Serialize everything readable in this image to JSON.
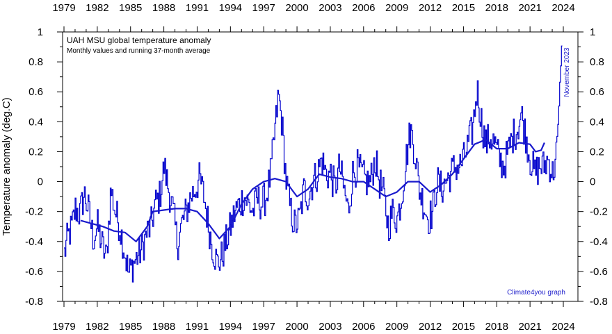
{
  "chart_data": {
    "type": "line",
    "title": "UAH MSU global temperature anomaly",
    "subtitle": "Monthly values and running 37-month average",
    "ylabel": "Temperature anomaly (deg.C)",
    "xlabel": "",
    "credit": "Climate4you graph",
    "end_label": "November 2023",
    "xlim": [
      1979.0,
      2024.0
    ],
    "ylim": [
      -0.8,
      1.0
    ],
    "x_ticks": [
      1979,
      1982,
      1985,
      1988,
      1991,
      1994,
      1997,
      2000,
      2003,
      2006,
      2009,
      2012,
      2015,
      2018,
      2021,
      2024
    ],
    "y_ticks": [
      -0.8,
      -0.6,
      -0.4,
      -0.2,
      0,
      0.2,
      0.4,
      0.6,
      0.8,
      1
    ],
    "y_tick_labels": [
      "-0.8",
      "-0.6",
      "-0.4",
      "-0.2",
      "0",
      "0.2",
      "0.4",
      "0.6",
      "0.8",
      "1"
    ],
    "series": [
      {
        "name": "Monthly values",
        "style": "step",
        "color": "#0000cc",
        "keypoints": [
          [
            1979.0,
            -0.48
          ],
          [
            1979.3,
            -0.38
          ],
          [
            1979.7,
            -0.3
          ],
          [
            1980.0,
            -0.18
          ],
          [
            1980.4,
            -0.22
          ],
          [
            1980.8,
            -0.08
          ],
          [
            1981.2,
            -0.2
          ],
          [
            1981.6,
            -0.38
          ],
          [
            1982.0,
            -0.3
          ],
          [
            1982.4,
            -0.42
          ],
          [
            1982.8,
            -0.52
          ],
          [
            1983.2,
            -0.05
          ],
          [
            1983.6,
            -0.2
          ],
          [
            1984.0,
            -0.3
          ],
          [
            1984.4,
            -0.45
          ],
          [
            1984.8,
            -0.62
          ],
          [
            1985.2,
            -0.55
          ],
          [
            1985.6,
            -0.5
          ],
          [
            1986.0,
            -0.45
          ],
          [
            1986.4,
            -0.35
          ],
          [
            1986.8,
            -0.3
          ],
          [
            1987.2,
            -0.15
          ],
          [
            1987.6,
            -0.1
          ],
          [
            1988.0,
            0.1
          ],
          [
            1988.4,
            -0.05
          ],
          [
            1988.8,
            -0.2
          ],
          [
            1989.2,
            -0.42
          ],
          [
            1989.6,
            -0.28
          ],
          [
            1990.0,
            -0.2
          ],
          [
            1990.4,
            -0.1
          ],
          [
            1990.8,
            -0.05
          ],
          [
            1991.2,
            0.02
          ],
          [
            1991.6,
            -0.1
          ],
          [
            1992.0,
            -0.3
          ],
          [
            1992.4,
            -0.45
          ],
          [
            1992.8,
            -0.55
          ],
          [
            1993.2,
            -0.5
          ],
          [
            1993.6,
            -0.4
          ],
          [
            1994.0,
            -0.3
          ],
          [
            1994.4,
            -0.2
          ],
          [
            1994.8,
            -0.15
          ],
          [
            1995.2,
            -0.1
          ],
          [
            1995.6,
            -0.15
          ],
          [
            1996.0,
            -0.2
          ],
          [
            1996.4,
            -0.12
          ],
          [
            1996.8,
            -0.15
          ],
          [
            1997.2,
            -0.1
          ],
          [
            1997.6,
            0.05
          ],
          [
            1998.0,
            0.35
          ],
          [
            1998.3,
            0.58
          ],
          [
            1998.6,
            0.4
          ],
          [
            1999.0,
            0.0
          ],
          [
            1999.4,
            -0.2
          ],
          [
            1999.8,
            -0.3
          ],
          [
            2000.2,
            -0.25
          ],
          [
            2000.6,
            -0.05
          ],
          [
            2001.0,
            -0.1
          ],
          [
            2001.4,
            0.0
          ],
          [
            2001.8,
            0.05
          ],
          [
            2002.2,
            0.15
          ],
          [
            2002.6,
            0.05
          ],
          [
            2003.0,
            0.05
          ],
          [
            2003.4,
            -0.05
          ],
          [
            2003.8,
            0.1
          ],
          [
            2004.2,
            -0.05
          ],
          [
            2004.6,
            -0.2
          ],
          [
            2005.0,
            0.05
          ],
          [
            2005.4,
            0.1
          ],
          [
            2005.8,
            0.05
          ],
          [
            2006.2,
            0.0
          ],
          [
            2006.6,
            0.0
          ],
          [
            2007.0,
            0.15
          ],
          [
            2007.4,
            0.0
          ],
          [
            2007.8,
            -0.1
          ],
          [
            2008.2,
            -0.3
          ],
          [
            2008.6,
            -0.2
          ],
          [
            2009.0,
            -0.25
          ],
          [
            2009.4,
            -0.1
          ],
          [
            2009.8,
            0.15
          ],
          [
            2010.2,
            0.35
          ],
          [
            2010.6,
            0.2
          ],
          [
            2011.0,
            -0.05
          ],
          [
            2011.4,
            -0.15
          ],
          [
            2011.8,
            -0.25
          ],
          [
            2012.2,
            -0.2
          ],
          [
            2012.6,
            0.0
          ],
          [
            2013.0,
            -0.05
          ],
          [
            2013.4,
            0.0
          ],
          [
            2013.8,
            0.05
          ],
          [
            2014.2,
            0.1
          ],
          [
            2014.6,
            0.1
          ],
          [
            2015.0,
            0.15
          ],
          [
            2015.4,
            0.25
          ],
          [
            2015.8,
            0.35
          ],
          [
            2016.2,
            0.62
          ],
          [
            2016.6,
            0.4
          ],
          [
            2017.0,
            0.25
          ],
          [
            2017.4,
            0.3
          ],
          [
            2017.8,
            0.25
          ],
          [
            2018.2,
            0.15
          ],
          [
            2018.6,
            0.1
          ],
          [
            2019.0,
            0.2
          ],
          [
            2019.4,
            0.3
          ],
          [
            2019.8,
            0.35
          ],
          [
            2020.2,
            0.45
          ],
          [
            2020.6,
            0.3
          ],
          [
            2021.0,
            0.15
          ],
          [
            2021.4,
            0.05
          ],
          [
            2021.8,
            0.1
          ],
          [
            2022.2,
            0.1
          ],
          [
            2022.6,
            0.15
          ],
          [
            2023.0,
            0.05
          ],
          [
            2023.3,
            0.15
          ],
          [
            2023.5,
            0.4
          ],
          [
            2023.7,
            0.7
          ],
          [
            2023.85,
            0.91
          ]
        ]
      },
      {
        "name": "Running 37-month average",
        "style": "line",
        "color": "#1a1acc",
        "points": [
          [
            1980.5,
            -0.26
          ],
          [
            1981.5,
            -0.28
          ],
          [
            1982.5,
            -0.3
          ],
          [
            1983.5,
            -0.33
          ],
          [
            1984.5,
            -0.34
          ],
          [
            1985.5,
            -0.4
          ],
          [
            1986.5,
            -0.3
          ],
          [
            1987.0,
            -0.2
          ],
          [
            1988.0,
            -0.19
          ],
          [
            1989.0,
            -0.18
          ],
          [
            1990.0,
            -0.18
          ],
          [
            1991.0,
            -0.2
          ],
          [
            1992.0,
            -0.28
          ],
          [
            1993.0,
            -0.38
          ],
          [
            1994.0,
            -0.3
          ],
          [
            1995.0,
            -0.15
          ],
          [
            1996.0,
            -0.05
          ],
          [
            1997.0,
            0.0
          ],
          [
            1998.0,
            0.02
          ],
          [
            1999.0,
            0.0
          ],
          [
            2000.0,
            -0.1
          ],
          [
            2001.0,
            -0.05
          ],
          [
            2002.0,
            0.05
          ],
          [
            2003.0,
            0.03
          ],
          [
            2004.0,
            0.02
          ],
          [
            2005.0,
            0.0
          ],
          [
            2006.0,
            0.0
          ],
          [
            2007.0,
            -0.05
          ],
          [
            2008.0,
            -0.1
          ],
          [
            2009.0,
            -0.07
          ],
          [
            2010.0,
            0.0
          ],
          [
            2011.0,
            0.0
          ],
          [
            2012.0,
            -0.07
          ],
          [
            2013.0,
            -0.02
          ],
          [
            2014.0,
            0.05
          ],
          [
            2015.0,
            0.15
          ],
          [
            2016.0,
            0.25
          ],
          [
            2017.0,
            0.28
          ],
          [
            2018.0,
            0.22
          ],
          [
            2019.0,
            0.22
          ],
          [
            2020.0,
            0.26
          ],
          [
            2021.0,
            0.25
          ],
          [
            2021.5,
            0.2
          ],
          [
            2022.0,
            0.21
          ],
          [
            2022.3,
            0.26
          ]
        ]
      }
    ]
  }
}
